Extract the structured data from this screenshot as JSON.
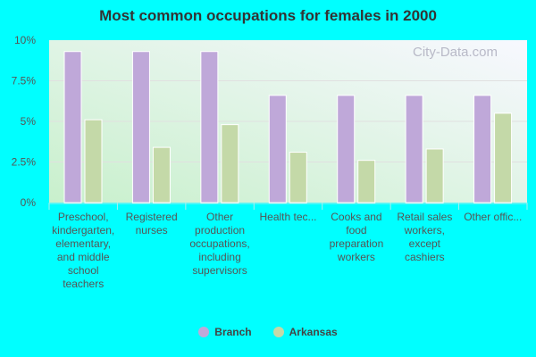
{
  "chart_data": {
    "type": "bar",
    "title": "Most common occupations for females in 2000",
    "categories": [
      "Preschool, kindergarten, elementary, and middle school teachers",
      "Registered nurses",
      "Other production occupations, including supervisors",
      "Health tec...",
      "Cooks and food preparation workers",
      "Retail sales workers, except cashiers",
      "Other offic..."
    ],
    "series": [
      {
        "name": "Branch",
        "color": "#bfa8d9",
        "values": [
          9.3,
          9.3,
          9.3,
          6.6,
          6.6,
          6.6,
          6.6
        ]
      },
      {
        "name": "Arkansas",
        "color": "#c4d9a8",
        "values": [
          5.1,
          3.4,
          4.8,
          3.1,
          2.6,
          3.3,
          5.5
        ]
      }
    ],
    "yticks": [
      "0%",
      "2.5%",
      "5%",
      "7.5%",
      "10%"
    ],
    "ylim": [
      0,
      10
    ],
    "grid": true,
    "legend": "bottom",
    "watermark": "City-Data.com"
  }
}
